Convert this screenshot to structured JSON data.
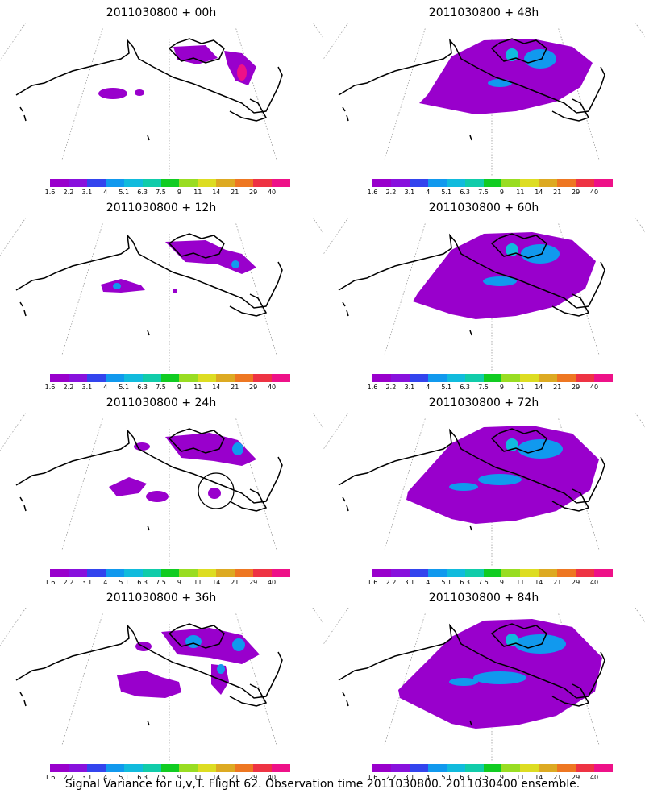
{
  "caption": "Signal Variance for u,v,T. Flight 62. Observation time 2011030800. 2011030400 ensemble.",
  "colorbar": {
    "labels": [
      "1.6",
      "2.2",
      "3.1",
      "4",
      "5.1",
      "6.3",
      "7.5",
      "9",
      "11",
      "14",
      "21",
      "29",
      "40"
    ],
    "colors": [
      "#9900cc",
      "#8811dd",
      "#3344ee",
      "#1199ee",
      "#11bbdd",
      "#11ccaa",
      "#11cc22",
      "#99dd22",
      "#dddd22",
      "#ddaa22",
      "#ee7722",
      "#ee3344",
      "#ee1188"
    ]
  },
  "panels": [
    {
      "title": "2011030800 + 00h",
      "level": 0
    },
    {
      "title": "2011030800 + 48h",
      "level": 4
    },
    {
      "title": "2011030800 + 12h",
      "level": 1
    },
    {
      "title": "2011030800 + 60h",
      "level": 5
    },
    {
      "title": "2011030800 + 24h",
      "level": 2
    },
    {
      "title": "2011030800 + 72h",
      "level": 6
    },
    {
      "title": "2011030800 + 36h",
      "level": 3
    },
    {
      "title": "2011030800 + 84h",
      "level": 7
    }
  ]
}
